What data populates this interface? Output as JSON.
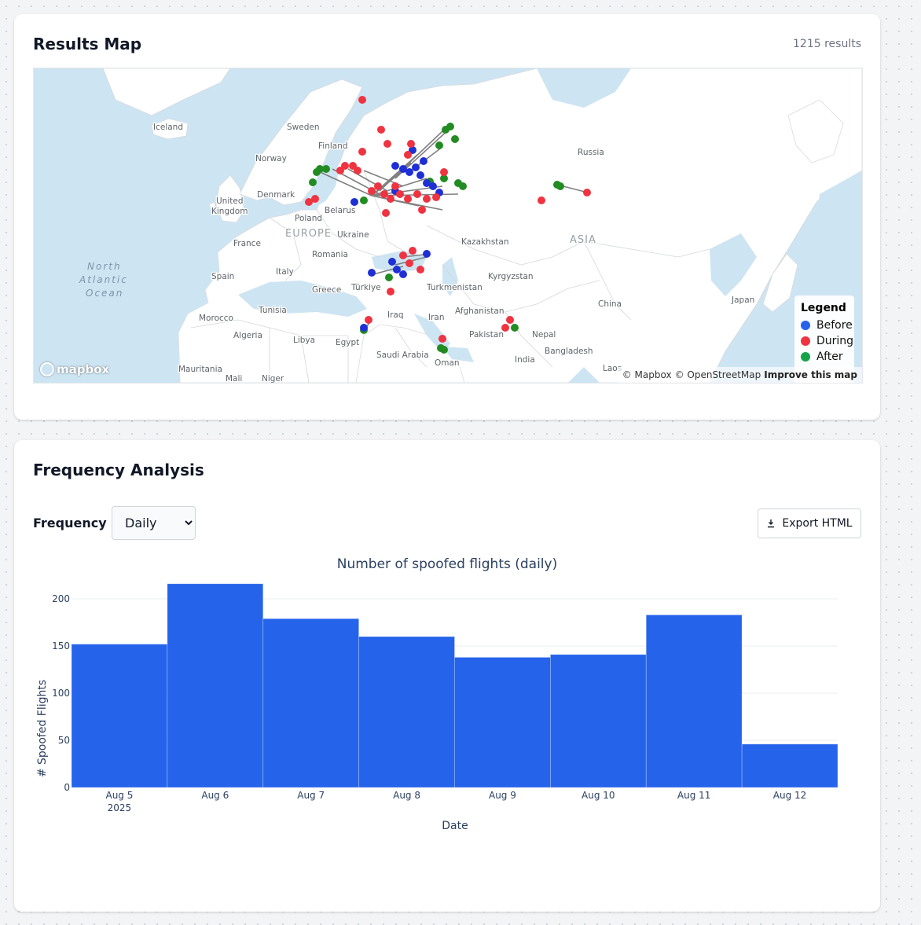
{
  "map_card": {
    "title": "Results Map",
    "results_count": "1215 results",
    "legend": {
      "title": "Legend",
      "items": [
        {
          "label": "Before",
          "color": "#2563eb"
        },
        {
          "label": "During",
          "color": "#ef3340"
        },
        {
          "label": "After",
          "color": "#16a34a"
        }
      ]
    },
    "mapbox_logo": "mapbox",
    "attribution": {
      "mapbox": "© Mapbox",
      "osm": "© OpenStreetMap",
      "improve": "Improve this map"
    },
    "labels": {
      "iceland": "Iceland",
      "sweden": "Sweden",
      "finland": "Finland",
      "norway": "Norway",
      "russia": "Russia",
      "denmark": "Denmark",
      "uk_1": "United",
      "uk_2": "Kingdom",
      "poland": "Poland",
      "belarus": "Belarus",
      "europe": "EUROPE",
      "ukraine": "Ukraine",
      "france": "France",
      "romania": "Romania",
      "kazakhstan": "Kazakhstan",
      "asia": "ASIA",
      "ocean_1": "North",
      "ocean_2": "Atlantic",
      "ocean_3": "Ocean",
      "spain": "Spain",
      "italy": "Italy",
      "greece": "Greece",
      "turkiye": "Türkiye",
      "turkmenistan": "Turkmenistan",
      "kyrgyzstan": "Kyrgyzstan",
      "china": "China",
      "japan": "Japan",
      "tunisia": "Tunisia",
      "morocco": "Morocco",
      "iraq": "Iraq",
      "iran": "Iran",
      "afghanistan": "Afghanistan",
      "algeria": "Algeria",
      "libya": "Libya",
      "egypt": "Egypt",
      "pakistan": "Pakistan",
      "nepal": "Nepal",
      "bangladesh": "Bangladesh",
      "saudi_arabia": "Saudi Arabia",
      "india": "India",
      "oman": "Oman",
      "mauritania": "Mauritania",
      "mali": "Mali",
      "niger": "Niger",
      "laos": "Laos"
    }
  },
  "freq_card": {
    "title": "Frequency Analysis",
    "frequency_label": "Frequency",
    "select": {
      "value": "Daily",
      "options": [
        "Daily"
      ]
    },
    "export_label": "Export HTML"
  },
  "chart_data": {
    "type": "bar",
    "title": "Number of spoofed flights (daily)",
    "xlabel": "Date",
    "ylabel": "# Spoofed Flights",
    "categories": [
      "Aug 5",
      "Aug 6",
      "Aug 7",
      "Aug 8",
      "Aug 9",
      "Aug 10",
      "Aug 11",
      "Aug 12"
    ],
    "year_label": "2025",
    "values": [
      152,
      216,
      179,
      160,
      138,
      141,
      183,
      46
    ],
    "yticks": [
      0,
      50,
      100,
      150,
      200
    ],
    "ylim": [
      0,
      220
    ],
    "color": "#2563eb",
    "grid": true
  }
}
